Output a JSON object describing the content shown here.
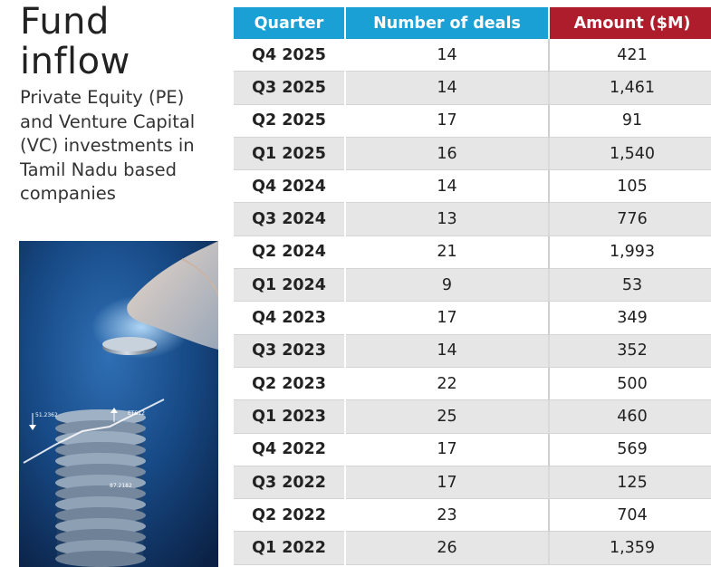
{
  "title": "Fund inflow",
  "subtitle": "Private Equity (PE) and Venture Capital (VC) investments in Tamil Nadu based companies",
  "colors": {
    "header_blue": "#1ba0d6",
    "header_red": "#ad1d2c",
    "row_alt": "#e6e6e6"
  },
  "photo": {
    "icon": "coin-stack-hand-photo",
    "labels": [
      "51.2362",
      "ETS12",
      "87.2182"
    ]
  },
  "chart_data": {
    "type": "table",
    "columns": [
      "Quarter",
      "Number of deals",
      "Amount ($M)"
    ],
    "rows": [
      [
        "Q4 2025",
        "14",
        "421"
      ],
      [
        "Q3 2025",
        "14",
        "1,461"
      ],
      [
        "Q2 2025",
        "17",
        "91"
      ],
      [
        "Q1 2025",
        "16",
        "1,540"
      ],
      [
        "Q4 2024",
        "14",
        "105"
      ],
      [
        "Q3 2024",
        "13",
        "776"
      ],
      [
        "Q2 2024",
        "21",
        "1,993"
      ],
      [
        "Q1 2024",
        "9",
        "53"
      ],
      [
        "Q4 2023",
        "17",
        "349"
      ],
      [
        "Q3 2023",
        "14",
        "352"
      ],
      [
        "Q2 2023",
        "22",
        "500"
      ],
      [
        "Q1 2023",
        "25",
        "460"
      ],
      [
        "Q4 2022",
        "17",
        "569"
      ],
      [
        "Q3 2022",
        "17",
        "125"
      ],
      [
        "Q2 2022",
        "23",
        "704"
      ],
      [
        "Q1 2022",
        "26",
        "1,359"
      ]
    ]
  }
}
